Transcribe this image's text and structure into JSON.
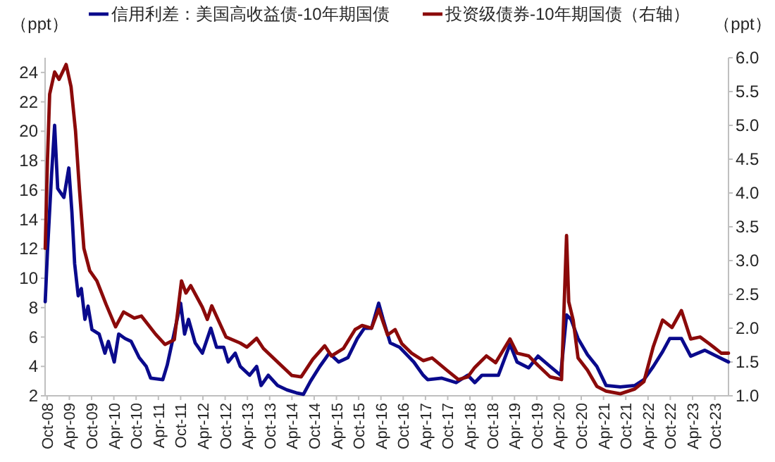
{
  "chart_data": {
    "type": "line",
    "ylabel": "（ppt）",
    "y2label": "（ppt）",
    "xlim": [
      "2008-09-15",
      "2024-01-22"
    ],
    "xticks": [
      {
        "value": "2008-10-01",
        "label": "Oct-08"
      },
      {
        "value": "2009-04-01",
        "label": "Apr-09"
      },
      {
        "value": "2009-10-01",
        "label": "Oct-09"
      },
      {
        "value": "2010-04-01",
        "label": "Apr-10"
      },
      {
        "value": "2010-10-01",
        "label": "Oct-10"
      },
      {
        "value": "2011-04-01",
        "label": "Apr-11"
      },
      {
        "value": "2011-10-01",
        "label": "Oct-11"
      },
      {
        "value": "2012-04-01",
        "label": "Apr-12"
      },
      {
        "value": "2012-10-01",
        "label": "Oct-12"
      },
      {
        "value": "2013-04-01",
        "label": "Apr-13"
      },
      {
        "value": "2013-10-01",
        "label": "Oct-13"
      },
      {
        "value": "2014-04-01",
        "label": "Apr-14"
      },
      {
        "value": "2014-10-01",
        "label": "Oct-14"
      },
      {
        "value": "2015-04-01",
        "label": "Apr-15"
      },
      {
        "value": "2015-10-01",
        "label": "Oct-15"
      },
      {
        "value": "2016-04-01",
        "label": "Apr-16"
      },
      {
        "value": "2016-10-01",
        "label": "Oct-16"
      },
      {
        "value": "2017-04-01",
        "label": "Apr-17"
      },
      {
        "value": "2017-10-01",
        "label": "Oct-17"
      },
      {
        "value": "2018-04-01",
        "label": "Apr-18"
      },
      {
        "value": "2018-10-01",
        "label": "Oct-18"
      },
      {
        "value": "2019-04-01",
        "label": "Apr-19"
      },
      {
        "value": "2019-10-01",
        "label": "Oct-19"
      },
      {
        "value": "2020-04-01",
        "label": "Apr-20"
      },
      {
        "value": "2020-10-01",
        "label": "Oct-20"
      },
      {
        "value": "2021-04-01",
        "label": "Apr-21"
      },
      {
        "value": "2021-10-01",
        "label": "Oct-21"
      },
      {
        "value": "2022-04-01",
        "label": "Apr-22"
      },
      {
        "value": "2022-10-01",
        "label": "Oct-22"
      },
      {
        "value": "2023-04-01",
        "label": "Apr-23"
      },
      {
        "value": "2023-10-01",
        "label": "Oct-23"
      }
    ],
    "ylim": [
      2,
      25
    ],
    "yticks": [
      2,
      4,
      6,
      8,
      10,
      12,
      14,
      16,
      18,
      20,
      22,
      24
    ],
    "y2lim": [
      1,
      6
    ],
    "y2ticks": [
      {
        "value": 1,
        "label": "1.0"
      },
      {
        "value": 1.5,
        "label": "1.5"
      },
      {
        "value": 2,
        "label": "2.0"
      },
      {
        "value": 2.5,
        "label": "2.5"
      },
      {
        "value": 3,
        "label": "3.0"
      },
      {
        "value": 3.5,
        "label": "3.5"
      },
      {
        "value": 4,
        "label": "4.0"
      },
      {
        "value": 4.5,
        "label": "4.5"
      },
      {
        "value": 5,
        "label": "5.0"
      },
      {
        "value": 5.5,
        "label": "5.5"
      },
      {
        "value": 6,
        "label": "6.0"
      }
    ],
    "legend": "top",
    "grid": false,
    "series": [
      {
        "name": "信用利差：美国高收益债-10年期国债",
        "color": "#0a0a8c",
        "x": [
          "2008-09-16",
          "2008-10-04",
          "2008-11-07",
          "2008-12-02",
          "2008-12-27",
          "2009-02-17",
          "2009-03-27",
          "2009-04-22",
          "2009-05-14",
          "2009-06-13",
          "2009-07-08",
          "2009-08-07",
          "2009-09-02",
          "2009-10-04",
          "2009-12-02",
          "2010-01-19",
          "2010-02-17",
          "2010-04-04",
          "2010-05-10",
          "2010-07-01",
          "2010-08-21",
          "2010-10-26",
          "2010-12-23",
          "2011-01-29",
          "2011-05-07",
          "2011-06-13",
          "2011-10-01",
          "2011-11-03",
          "2011-12-05",
          "2012-01-29",
          "2012-03-27",
          "2012-06-05",
          "2012-07-22",
          "2012-09-20",
          "2012-10-26",
          "2012-12-23",
          "2013-02-03",
          "2013-04-19",
          "2013-06-16",
          "2013-07-22",
          "2013-09-20",
          "2013-12-05",
          "2014-02-21",
          "2014-05-07",
          "2014-07-04",
          "2014-09-02",
          "2014-11-17",
          "2015-02-03",
          "2015-04-19",
          "2015-07-04",
          "2015-09-20",
          "2015-11-17",
          "2016-01-15",
          "2016-03-13",
          "2016-04-19",
          "2016-06-16",
          "2016-09-02",
          "2016-12-27",
          "2017-03-13",
          "2017-04-19",
          "2017-08-14",
          "2017-12-09",
          "2018-03-13",
          "2018-05-10",
          "2018-07-08",
          "2018-11-21",
          "2019-02-25",
          "2019-04-22",
          "2019-07-26",
          "2019-10-11",
          "2020-01-19",
          "2020-04-15",
          "2020-06-02",
          "2020-07-08",
          "2020-09-05",
          "2020-11-21",
          "2021-02-07",
          "2021-04-22",
          "2021-08-17",
          "2021-12-13",
          "2022-02-28",
          "2022-05-14",
          "2022-07-29",
          "2022-09-27",
          "2023-01-01",
          "2023-03-16",
          "2023-07-11",
          "2023-10-15",
          "2024-01-22"
        ],
        "values": [
          8.4,
          11.8,
          17,
          20.4,
          16.1,
          15.5,
          17.5,
          14.5,
          11,
          8.8,
          9.3,
          7.2,
          8.1,
          6.5,
          6.2,
          4.9,
          5.7,
          4.3,
          6.2,
          5.9,
          5.7,
          4.6,
          4,
          3.2,
          3.1,
          4.1,
          8.3,
          6.2,
          7.2,
          5.6,
          4.9,
          6.6,
          5.3,
          5.3,
          4.3,
          4.9,
          4,
          3.4,
          4,
          2.7,
          3.4,
          2.7,
          2.4,
          2.2,
          2.1,
          3,
          4,
          4.9,
          4.3,
          4.6,
          5.9,
          6.6,
          6.6,
          8.3,
          7.2,
          5.6,
          5.3,
          4.3,
          3.4,
          3.1,
          3.2,
          2.9,
          3.4,
          2.9,
          3.4,
          3.4,
          5.5,
          4.3,
          3.9,
          4.7,
          4,
          3.4,
          7.5,
          7.2,
          5.9,
          4.8,
          4,
          2.7,
          2.6,
          2.7,
          3.1,
          4,
          5,
          5.9,
          5.9,
          4.7,
          5.1,
          4.7,
          4.3
        ]
      },
      {
        "name": "投资级债券-10年期国债（右轴）",
        "color": "#8b0a0a",
        "axis": "y2",
        "x": [
          "2008-09-16",
          "2008-10-04",
          "2008-10-22",
          "2008-12-02",
          "2009-01-08",
          "2009-03-05",
          "2009-04-15",
          "2009-05-21",
          "2009-06-23",
          "2009-07-29",
          "2009-09-16",
          "2009-11-14",
          "2010-01-29",
          "2010-04-15",
          "2010-06-20",
          "2010-09-16",
          "2010-11-14",
          "2011-03-09",
          "2011-05-25",
          "2011-08-10",
          "2011-10-08",
          "2011-11-14",
          "2011-12-23",
          "2012-03-27",
          "2012-05-07",
          "2012-06-13",
          "2012-10-08",
          "2013-02-03",
          "2013-03-27",
          "2013-06-16",
          "2013-08-10",
          "2013-12-05",
          "2014-04-01",
          "2014-06-16",
          "2014-09-20",
          "2014-12-27",
          "2015-02-21",
          "2015-05-28",
          "2015-09-02",
          "2015-10-29",
          "2016-01-15",
          "2016-03-13",
          "2016-05-25",
          "2016-07-26",
          "2016-09-20",
          "2016-12-09",
          "2017-03-13",
          "2017-05-25",
          "2017-09-23",
          "2017-12-27",
          "2018-03-13",
          "2018-05-10",
          "2018-08-14",
          "2018-10-29",
          "2019-02-25",
          "2019-04-22",
          "2019-07-26",
          "2019-10-11",
          "2020-01-19",
          "2020-04-22",
          "2020-06-02",
          "2020-06-20",
          "2020-07-26",
          "2020-09-05",
          "2020-11-21",
          "2021-02-07",
          "2021-04-22",
          "2021-08-17",
          "2021-12-13",
          "2022-02-28",
          "2022-05-14",
          "2022-07-29",
          "2022-10-15",
          "2023-01-01",
          "2023-03-16",
          "2023-06-02",
          "2023-08-17",
          "2023-11-25",
          "2024-01-22"
        ],
        "values": [
          3.18,
          4.48,
          5.46,
          5.79,
          5.68,
          5.9,
          5.57,
          4.92,
          4.05,
          3.18,
          2.85,
          2.7,
          2.35,
          2.02,
          2.24,
          2.15,
          2.18,
          1.91,
          1.76,
          1.83,
          2.7,
          2.52,
          2.63,
          2.31,
          2.13,
          2.33,
          1.87,
          1.78,
          1.72,
          1.85,
          1.7,
          1.5,
          1.3,
          1.28,
          1.54,
          1.74,
          1.59,
          1.7,
          1.98,
          2.04,
          2,
          2.28,
          1.9,
          1.98,
          1.77,
          1.63,
          1.52,
          1.56,
          1.38,
          1.24,
          1.28,
          1.42,
          1.59,
          1.49,
          1.84,
          1.63,
          1.59,
          1.45,
          1.28,
          1.24,
          3.37,
          2.39,
          2.12,
          1.56,
          1.38,
          1.14,
          1.07,
          1.03,
          1.1,
          1.21,
          1.73,
          2.12,
          2.01,
          2.26,
          1.84,
          1.87,
          1.77,
          1.63,
          1.63
        ]
      }
    ]
  }
}
